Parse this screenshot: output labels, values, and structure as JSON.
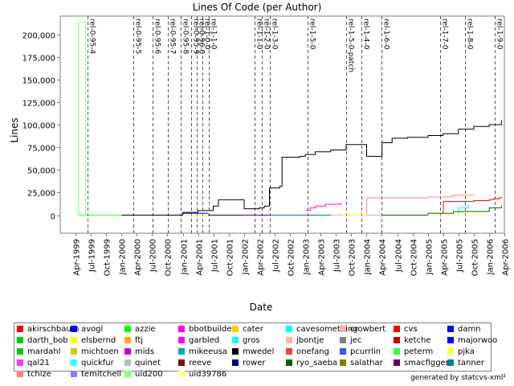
{
  "chart_data": {
    "type": "line",
    "title": "Lines Of Code (per Author)",
    "xlabel": "Date",
    "ylabel": "Lines",
    "xlim": [
      "1999-01-01",
      "2006-04-01"
    ],
    "ylim": [
      -20000,
      220000
    ],
    "x_ticks": [
      "Apr-1999",
      "Jul-1999",
      "Oct-1999",
      "Jan-2000",
      "Apr-2000",
      "Jul-2000",
      "Oct-2000",
      "Jan-2001",
      "Apr-2001",
      "Jul-2001",
      "Oct-2001",
      "Jan-2002",
      "Apr-2002",
      "Jul-2002",
      "Oct-2002",
      "Jan-2003",
      "Apr-2003",
      "Jul-2003",
      "Oct-2003",
      "Jan-2004",
      "Apr-2004",
      "Jul-2004",
      "Oct-2004",
      "Jan-2005",
      "Apr-2005",
      "Jul-2005",
      "Oct-2005",
      "Jan-2006",
      "Apr-2006"
    ],
    "y_ticks": [
      0,
      25000,
      50000,
      75000,
      100000,
      125000,
      150000,
      175000,
      200000
    ],
    "y_tick_labels": [
      "0",
      "25,000",
      "50,000",
      "75,000",
      "100,000",
      "125,000",
      "150,000",
      "175,000",
      "200,000"
    ],
    "grid": false,
    "legend_placement": "bottom",
    "markers": [
      {
        "label": "rel-0-95-4",
        "date": "1999-06-15"
      },
      {
        "label": "rel-0-95-5",
        "date": "2000-03-10"
      },
      {
        "label": "rel-0-95-6",
        "date": "2000-07-05"
      },
      {
        "label": "rel-0-95-7",
        "date": "2000-10-05"
      },
      {
        "label": "rel-0-95-8",
        "date": "2000-12-20"
      },
      {
        "label": "rel-0-95-9",
        "date": "2001-02-20"
      },
      {
        "label": "rel-0-96-0",
        "date": "2001-03-25"
      },
      {
        "label": "rel-1-0-0",
        "date": "2001-04-25"
      },
      {
        "label": "rel-1-1-0",
        "date": "2001-06-05"
      },
      {
        "label": "rel-1-1-0",
        "date": "2002-03-05"
      },
      {
        "label": "rel-1-2-0",
        "date": "2002-04-15"
      },
      {
        "label": "rel-1-3-0",
        "date": "2002-06-01"
      },
      {
        "label": "rel-1-5-0",
        "date": "2003-01-15"
      },
      {
        "label": "rel-1-5-0-patch",
        "date": "2003-09-01"
      },
      {
        "label": "rel-1-4-0",
        "date": "2003-12-01"
      },
      {
        "label": "rel-1-6-0",
        "date": "2004-04-01"
      },
      {
        "label": "rel-1-7-0",
        "date": "2005-03-15"
      },
      {
        "label": "rel-1-8-0",
        "date": "2005-08-10"
      },
      {
        "label": "rel-1-9-0",
        "date": "2006-02-01"
      }
    ],
    "series": [
      {
        "name": "akirschbaum",
        "color": "#ff0000",
        "points": [
          [
            "1999-04-15",
            0
          ],
          [
            "2000-02-01",
            0
          ]
        ]
      },
      {
        "name": "avogl",
        "color": "#0000ff",
        "points": [
          [
            "1999-04-15",
            0
          ],
          [
            "2000-04-01",
            0
          ]
        ]
      },
      {
        "name": "azzie",
        "color": "#00ff00",
        "points": [
          [
            "1999-04-15",
            0
          ],
          [
            "2001-06-01",
            0
          ]
        ]
      },
      {
        "name": "bbotbuilder",
        "color": "#ff00ff",
        "points": [
          [
            "2003-02-01",
            0
          ],
          [
            "2003-06-01",
            0
          ]
        ]
      },
      {
        "name": "cater",
        "color": "#ffcc00",
        "points": [
          [
            "2002-04-01",
            0
          ],
          [
            "2002-10-01",
            0
          ]
        ]
      },
      {
        "name": "cavesomething",
        "color": "#00ffff",
        "points": [
          [
            "2001-06-01",
            0
          ],
          [
            "2001-10-01",
            0
          ]
        ]
      },
      {
        "name": "crowbert",
        "color": "#ffafaf",
        "points": [
          [
            "2003-06-01",
            0
          ],
          [
            "2003-10-01",
            0
          ]
        ]
      },
      {
        "name": "cvs",
        "color": "#ff0000",
        "points": [
          [
            "2005-04-01",
            2000
          ],
          [
            "2005-04-02",
            15000
          ],
          [
            "2005-10-01",
            16000
          ],
          [
            "2006-01-01",
            17000
          ],
          [
            "2006-01-25",
            18000
          ],
          [
            "2006-03-01",
            19000
          ],
          [
            "2006-03-15",
            20000
          ]
        ]
      },
      {
        "name": "damn",
        "color": "#0000ff",
        "points": [
          [
            "2000-01-01",
            0
          ],
          [
            "2001-01-01",
            2000
          ],
          [
            "2001-06-01",
            2000
          ]
        ]
      },
      {
        "name": "darth_bob",
        "color": "#00cc00",
        "points": [
          [
            "2004-06-01",
            0
          ],
          [
            "2005-01-01",
            0
          ]
        ]
      },
      {
        "name": "elsbernd",
        "color": "#ffff00",
        "points": [
          [
            "2003-06-01",
            0
          ],
          [
            "2004-01-01",
            0
          ]
        ]
      },
      {
        "name": "ftj",
        "color": "#ffaa00",
        "points": [
          [
            "2005-01-01",
            0
          ],
          [
            "2005-06-01",
            0
          ]
        ]
      },
      {
        "name": "garbled",
        "color": "#ff00ff",
        "points": [
          [
            "2003-01-01",
            5000
          ],
          [
            "2003-02-01",
            8000
          ],
          [
            "2003-03-01",
            10000
          ],
          [
            "2003-05-01",
            12000
          ],
          [
            "2003-08-01",
            14000
          ]
        ]
      },
      {
        "name": "gros",
        "color": "#00ffff",
        "points": [
          [
            "2005-06-01",
            0
          ],
          [
            "2005-07-01",
            8000
          ],
          [
            "2005-09-01",
            12000
          ]
        ]
      },
      {
        "name": "jbontje",
        "color": "#ffafaf",
        "points": [
          [
            "2003-06-01",
            0
          ],
          [
            "2003-08-01",
            2000
          ]
        ]
      },
      {
        "name": "jec",
        "color": "#808080",
        "points": [
          [
            "2000-01-01",
            0
          ],
          [
            "2000-06-01",
            0
          ]
        ]
      },
      {
        "name": "ketche",
        "color": "#cc0000",
        "points": [
          [
            "2001-01-01",
            0
          ],
          [
            "2001-06-01",
            0
          ]
        ]
      },
      {
        "name": "majorwoo",
        "color": "#0000ff",
        "points": [
          [
            "2001-01-01",
            0
          ],
          [
            "2001-06-01",
            0
          ]
        ]
      },
      {
        "name": "mardahl",
        "color": "#00cc00",
        "points": [
          [
            "2001-06-01",
            0
          ],
          [
            "2002-01-01",
            0
          ]
        ]
      },
      {
        "name": "michtoen",
        "color": "#cccc00",
        "points": [
          [
            "2001-01-01",
            0
          ],
          [
            "2001-06-01",
            0
          ]
        ]
      },
      {
        "name": "mids",
        "color": "#cc00cc",
        "points": [
          [
            "2002-01-01",
            0
          ],
          [
            "2002-06-01",
            0
          ]
        ]
      },
      {
        "name": "mikeeusa",
        "color": "#00aaaa",
        "points": [
          [
            "2001-01-01",
            0
          ],
          [
            "2001-06-01",
            0
          ]
        ]
      },
      {
        "name": "mwedel",
        "color": "#000000",
        "points": [
          [
            "1999-04-15",
            0
          ],
          [
            "1999-10-01",
            0
          ],
          [
            "2000-03-01",
            0
          ],
          [
            "2000-07-01",
            0
          ],
          [
            "2001-01-01",
            3000
          ],
          [
            "2001-04-01",
            5000
          ],
          [
            "2001-07-01",
            10000
          ],
          [
            "2001-08-01",
            17000
          ],
          [
            "2001-10-01",
            17000
          ],
          [
            "2002-01-01",
            7000
          ],
          [
            "2002-04-01",
            8000
          ],
          [
            "2002-05-01",
            10000
          ],
          [
            "2002-06-01",
            30000
          ],
          [
            "2002-08-01",
            32000
          ],
          [
            "2002-08-15",
            64000
          ],
          [
            "2002-12-01",
            65000
          ],
          [
            "2003-01-01",
            67000
          ],
          [
            "2003-03-01",
            70000
          ],
          [
            "2003-06-01",
            72000
          ],
          [
            "2003-09-01",
            78000
          ],
          [
            "2003-12-01",
            78000
          ],
          [
            "2004-01-01",
            65000
          ],
          [
            "2004-04-01",
            66000
          ],
          [
            "2004-04-02",
            80000
          ],
          [
            "2004-06-01",
            85000
          ],
          [
            "2004-09-01",
            86000
          ],
          [
            "2005-01-01",
            88000
          ],
          [
            "2005-04-01",
            90000
          ],
          [
            "2005-07-01",
            95000
          ],
          [
            "2005-10-01",
            98000
          ],
          [
            "2006-01-01",
            100000
          ],
          [
            "2006-03-15",
            105000
          ]
        ]
      },
      {
        "name": "onefang",
        "color": "#ee4444",
        "points": [
          [
            "2004-01-01",
            0
          ],
          [
            "2004-06-01",
            0
          ]
        ]
      },
      {
        "name": "pcurrlin",
        "color": "#3355ff",
        "points": [
          [
            "2002-06-01",
            0
          ],
          [
            "2003-01-01",
            0
          ]
        ]
      },
      {
        "name": "peterm",
        "color": "#33ff33",
        "points": [
          [
            "1999-04-15",
            0
          ],
          [
            "2000-01-01",
            0
          ]
        ]
      },
      {
        "name": "pjka",
        "color": "#ffff33",
        "points": [
          [
            "2001-01-01",
            0
          ],
          [
            "2001-06-01",
            0
          ]
        ]
      },
      {
        "name": "qal21",
        "color": "#ff33ff",
        "points": [
          [
            "2003-01-01",
            0
          ],
          [
            "2003-06-01",
            0
          ]
        ]
      },
      {
        "name": "quickfur",
        "color": "#33ffff",
        "points": [
          [
            "2005-06-01",
            0
          ],
          [
            "2006-01-01",
            0
          ]
        ]
      },
      {
        "name": "quinet",
        "color": "#bbbbbb",
        "points": [
          [
            "2004-01-01",
            0
          ],
          [
            "2005-01-01",
            0
          ]
        ]
      },
      {
        "name": "reeve",
        "color": "#880000",
        "points": [
          [
            "2002-01-01",
            0
          ],
          [
            "2002-06-01",
            0
          ]
        ]
      },
      {
        "name": "rower",
        "color": "#000080",
        "points": [
          [
            "2001-06-01",
            0
          ],
          [
            "2002-01-01",
            0
          ]
        ]
      },
      {
        "name": "ryo_saeba",
        "color": "#006600",
        "points": [
          [
            "2004-04-01",
            0
          ],
          [
            "2005-01-01",
            2000
          ],
          [
            "2005-06-01",
            4000
          ],
          [
            "2006-01-01",
            8000
          ],
          [
            "2006-03-15",
            10000
          ]
        ]
      },
      {
        "name": "salathar",
        "color": "#808000",
        "points": [
          [
            "2003-01-01",
            0
          ],
          [
            "2003-06-01",
            0
          ]
        ]
      },
      {
        "name": "smacfiggen",
        "color": "#660066",
        "points": [
          [
            "2002-01-01",
            0
          ],
          [
            "2002-06-01",
            0
          ]
        ]
      },
      {
        "name": "tanner",
        "color": "#008080",
        "points": [
          [
            "2003-01-01",
            0
          ],
          [
            "2003-06-01",
            0
          ]
        ]
      },
      {
        "name": "tchize",
        "color": "#ff8080",
        "points": [
          [
            "2004-01-01",
            0
          ],
          [
            "2004-01-02",
            19000
          ],
          [
            "2005-01-01",
            20000
          ],
          [
            "2005-06-01",
            22000
          ],
          [
            "2005-10-01",
            22000
          ]
        ]
      },
      {
        "name": "temitchell",
        "color": "#8080ff",
        "points": [
          [
            "2005-06-01",
            0
          ],
          [
            "2006-01-01",
            0
          ]
        ]
      },
      {
        "name": "uid200",
        "color": "#80ff80",
        "points": [
          [
            "1999-04-15",
            0
          ],
          [
            "1999-04-20",
            213000
          ],
          [
            "1999-06-01",
            213000
          ],
          [
            "1999-06-02",
            0
          ]
        ]
      },
      {
        "name": "uid39786",
        "color": "#ffff80",
        "points": [
          [
            "2005-01-01",
            0
          ],
          [
            "2006-01-01",
            0
          ]
        ]
      }
    ]
  },
  "legend_columns": 9,
  "footer": "generated by statcvs-xml²"
}
